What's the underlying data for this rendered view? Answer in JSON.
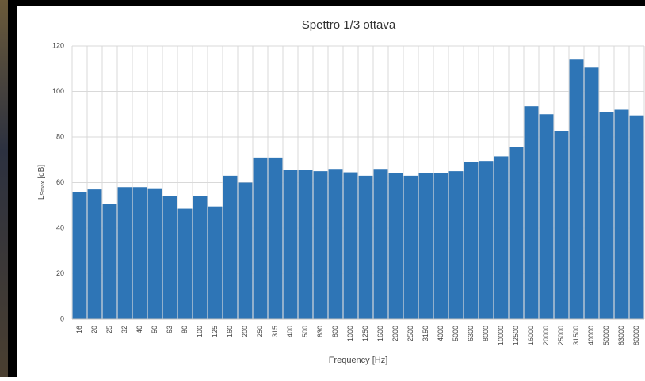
{
  "chart_data": {
    "type": "bar",
    "title": "Spettro 1/3 ottava",
    "x_label": "Frequency [Hz]",
    "y_label": {
      "main": "L",
      "sub": "Smax",
      "unit": "[dB]"
    },
    "categories": [
      "16",
      "20",
      "25",
      "32",
      "40",
      "50",
      "63",
      "80",
      "100",
      "125",
      "160",
      "200",
      "250",
      "315",
      "400",
      "500",
      "630",
      "800",
      "1000",
      "1250",
      "1600",
      "2000",
      "2500",
      "3150",
      "4000",
      "5000",
      "6300",
      "8000",
      "10000",
      "12500",
      "16000",
      "20000",
      "25000",
      "31500",
      "40000",
      "50000",
      "63000",
      "80000"
    ],
    "values": [
      56,
      57,
      50.5,
      58,
      58,
      57.5,
      54,
      48.5,
      54,
      49.5,
      63,
      60,
      71,
      71,
      65.5,
      65.5,
      65,
      66,
      64.5,
      63,
      66,
      64,
      63,
      64,
      64,
      65,
      69,
      69.5,
      71.5,
      75.5,
      93.5,
      90,
      82.5,
      114,
      110.5,
      91,
      92,
      89.5
    ],
    "color": "#2e75b6",
    "ylim": [
      0,
      120
    ],
    "yticks": [
      0,
      20,
      40,
      60,
      80,
      100,
      120
    ],
    "grid": true
  }
}
